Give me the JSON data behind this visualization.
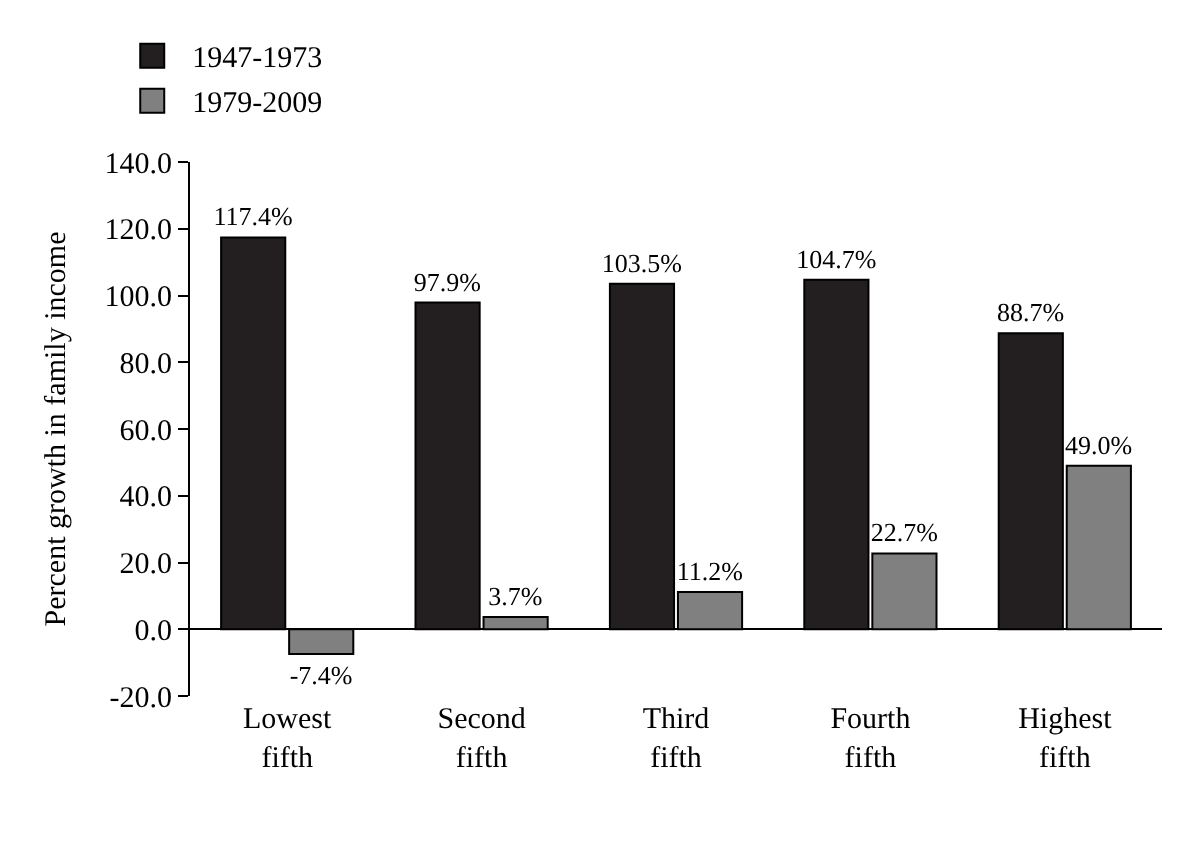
{
  "chart_data": {
    "type": "bar",
    "ylabel": "Percent growth in family income",
    "categories": [
      "Lowest\nfifth",
      "Second\nfifth",
      "Third\nfifth",
      "Fourth\nfifth",
      "Highest\nfifth"
    ],
    "series": [
      {
        "name": "1947-1973",
        "color": "#231f20",
        "values": [
          117.4,
          97.9,
          103.5,
          104.7,
          88.7
        ],
        "value_labels": [
          "117.4%",
          "97.9%",
          "103.5%",
          "104.7%",
          "88.7%"
        ]
      },
      {
        "name": "1979-2009",
        "color": "#808080",
        "values": [
          -7.4,
          3.7,
          11.2,
          22.7,
          49.0
        ],
        "value_labels": [
          "-7.4%",
          "3.7%",
          "11.2%",
          "22.7%",
          "49.0%"
        ]
      }
    ],
    "ylim": [
      -20,
      140
    ],
    "yticks": [
      {
        "value": -20,
        "label": "-20.0"
      },
      {
        "value": 0,
        "label": "0.0"
      },
      {
        "value": 20,
        "label": "20.0"
      },
      {
        "value": 40,
        "label": "40.0"
      },
      {
        "value": 60,
        "label": "60.0"
      },
      {
        "value": 80,
        "label": "80.0"
      },
      {
        "value": 100,
        "label": "100.0"
      },
      {
        "value": 120,
        "label": "120.0"
      },
      {
        "value": 140,
        "label": "140.0"
      }
    ],
    "legend": "top left"
  }
}
